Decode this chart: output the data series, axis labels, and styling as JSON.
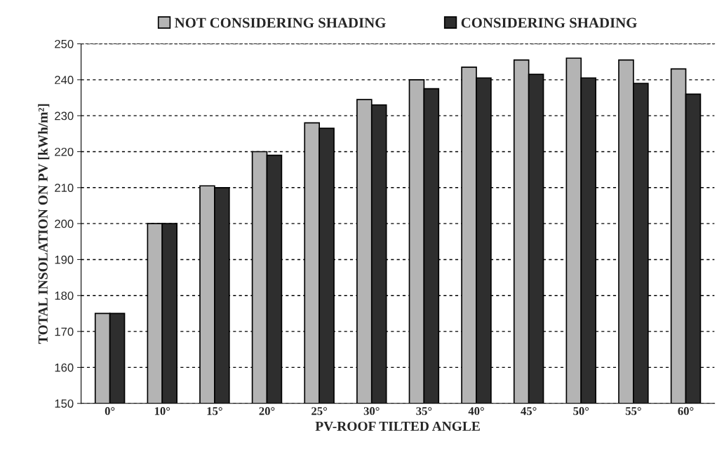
{
  "chart_data": {
    "type": "bar",
    "xlabel": "PV-ROOF TILTED ANGLE",
    "ylabel": "TOTAL INSOLATION ON PV [kWh/m²]",
    "categories": [
      "0°",
      "10°",
      "15°",
      "20°",
      "25°",
      "30°",
      "35°",
      "40°",
      "45°",
      "50°",
      "55°",
      "60°"
    ],
    "series": [
      {
        "name": "NOT CONSIDERING SHADING",
        "color": "#b4b4b4",
        "values": [
          175,
          200,
          210.5,
          220,
          228,
          234.5,
          240,
          243.5,
          245.5,
          246,
          245.5,
          243
        ]
      },
      {
        "name": "CONSIDERING SHADING",
        "color": "#2e2e2e",
        "values": [
          175,
          200,
          210,
          219,
          226.5,
          233,
          237.5,
          240.5,
          241.5,
          240.5,
          239,
          236
        ]
      }
    ],
    "ylim": [
      150,
      250
    ],
    "yticks": [
      150,
      160,
      170,
      180,
      190,
      200,
      210,
      220,
      230,
      240,
      250
    ],
    "grid": "y",
    "legend": "top"
  }
}
